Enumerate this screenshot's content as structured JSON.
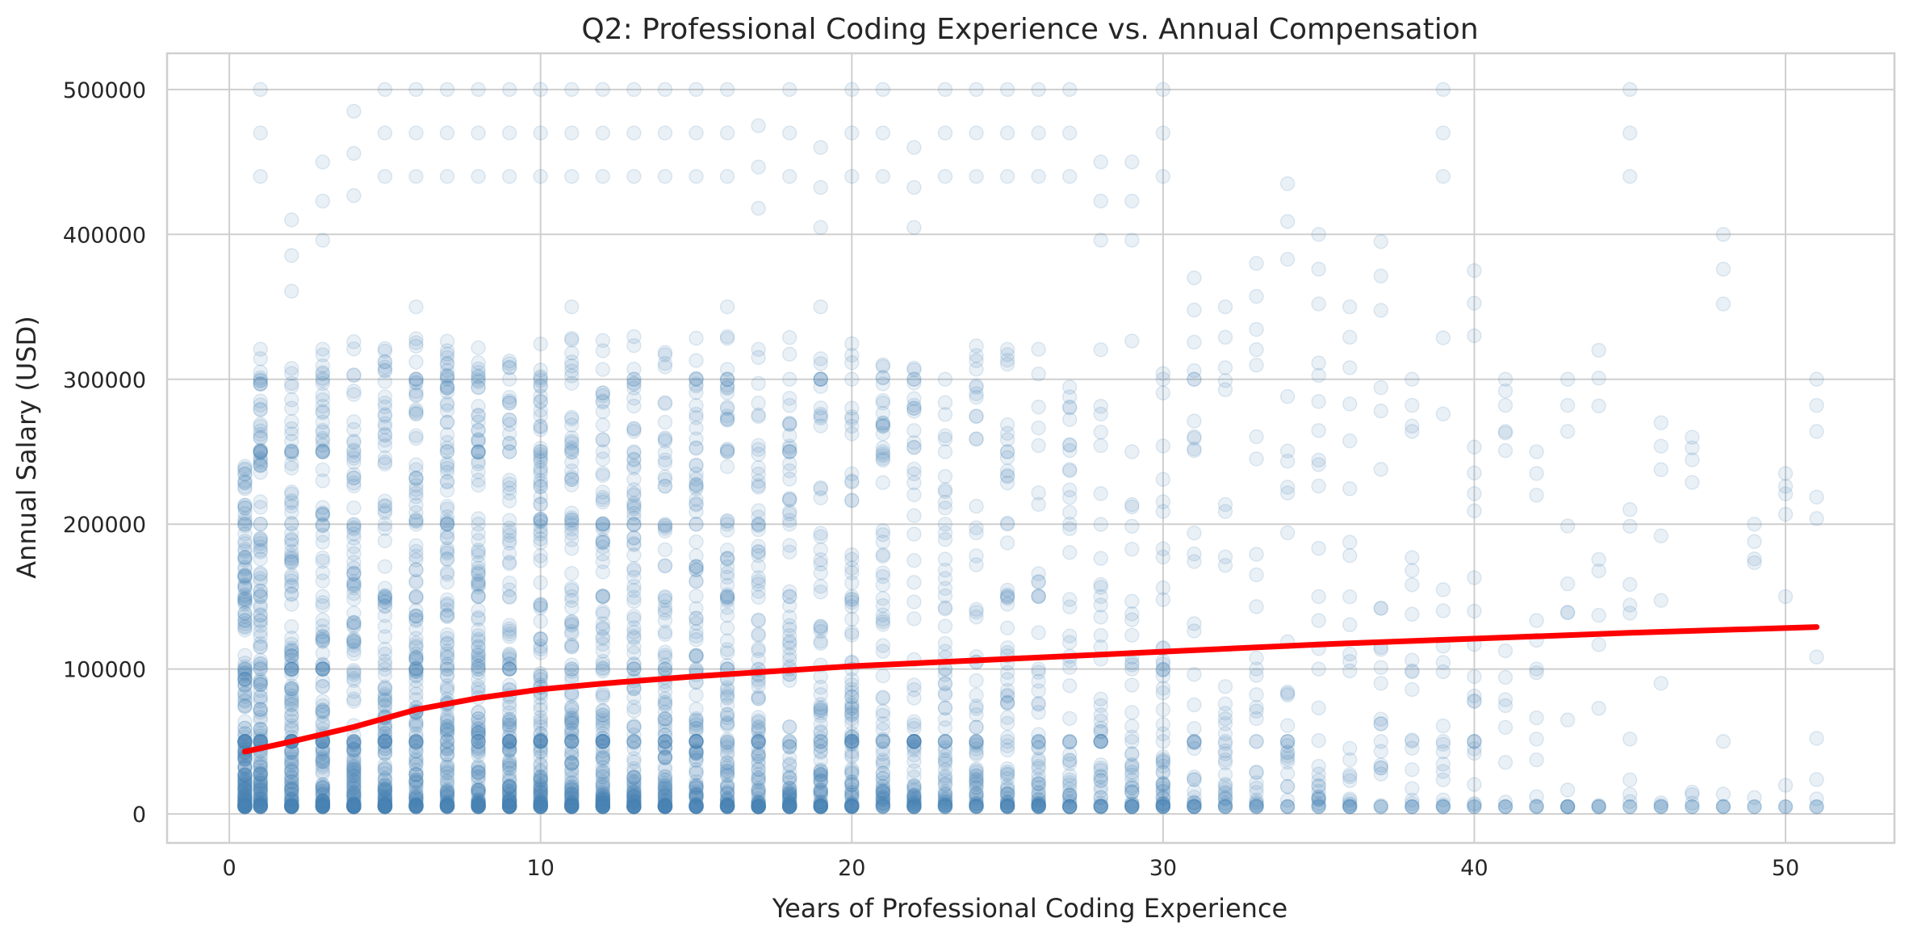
{
  "chart_data": {
    "type": "scatter",
    "title": "Q2: Professional Coding Experience vs. Annual Compensation",
    "xlabel": "Years of Professional Coding Experience",
    "ylabel": "Annual Salary (USD)",
    "xlim": [
      -2,
      53.5
    ],
    "ylim": [
      -20000,
      525000
    ],
    "x_ticks": [
      0,
      10,
      20,
      30,
      40,
      50
    ],
    "x_tick_labels": [
      "0",
      "10",
      "20",
      "30",
      "40",
      "50"
    ],
    "y_ticks": [
      0,
      100000,
      200000,
      300000,
      400000,
      500000
    ],
    "y_tick_labels": [
      "0",
      "100000",
      "200000",
      "300000",
      "400000",
      "500000"
    ],
    "grid": true,
    "legend": "none",
    "colors": {
      "points": "#4682b4",
      "trend": "#ff0000",
      "grid": "#cfcfcf"
    },
    "point_alpha": 0.12,
    "series": [
      {
        "kind": "scatter",
        "x_values": [
          0.5,
          1,
          2,
          3,
          4,
          5,
          6,
          7,
          8,
          9,
          10,
          11,
          12,
          13,
          14,
          15,
          16,
          17,
          18,
          19,
          20,
          21,
          22,
          23,
          24,
          25,
          26,
          27,
          28,
          29,
          30,
          31,
          32,
          33,
          34,
          35,
          36,
          37,
          38,
          39,
          40,
          41,
          42,
          43,
          44,
          45,
          46,
          47,
          48,
          49,
          50,
          51
        ],
        "max_y": [
          240000,
          500000,
          410000,
          450000,
          485000,
          500000,
          500000,
          500000,
          500000,
          500000,
          500000,
          500000,
          500000,
          500000,
          500000,
          500000,
          500000,
          475000,
          500000,
          460000,
          500000,
          500000,
          460000,
          500000,
          500000,
          500000,
          500000,
          500000,
          450000,
          450000,
          500000,
          370000,
          350000,
          380000,
          435000,
          400000,
          350000,
          395000,
          300000,
          500000,
          375000,
          300000,
          250000,
          300000,
          320000,
          500000,
          270000,
          260000,
          400000,
          200000,
          235000,
          300000
        ],
        "min_y": 5000,
        "points_per_x": [
          200,
          170,
          160,
          150,
          150,
          150,
          150,
          150,
          150,
          145,
          145,
          140,
          140,
          130,
          125,
          125,
          115,
          110,
          100,
          95,
          95,
          85,
          80,
          75,
          70,
          72,
          60,
          55,
          50,
          45,
          55,
          38,
          34,
          30,
          28,
          30,
          24,
          22,
          20,
          20,
          22,
          14,
          12,
          12,
          10,
          12,
          8,
          7,
          6,
          5,
          6,
          9
        ]
      },
      {
        "kind": "line",
        "x": [
          0.5,
          2,
          4,
          6,
          8,
          10,
          12,
          15,
          20,
          25,
          30,
          35,
          40,
          45,
          51
        ],
        "y": [
          43000,
          50000,
          60000,
          72000,
          80000,
          86000,
          90000,
          95000,
          102000,
          107000,
          112000,
          117000,
          121000,
          125000,
          129000
        ]
      }
    ]
  }
}
